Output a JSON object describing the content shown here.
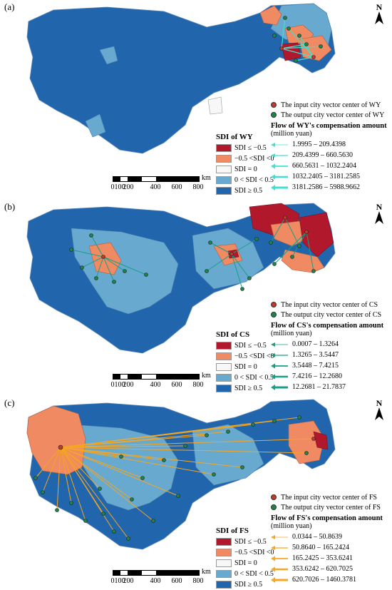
{
  "colors": {
    "le_neg05": "#b2182b",
    "neg05_0": "#ef8a62",
    "zero": "#f7f7f7",
    "zero_05": "#67a9cf",
    "ge_05": "#2166ac",
    "input_dot": "#c0392b",
    "output_dot": "#1e8449",
    "flow_wy": "#40e0d0",
    "flow_cs": "#16a085",
    "flow_fs": "#f5a623"
  },
  "scale": {
    "unit": "km",
    "ticks": [
      "0",
      "100",
      "200",
      "400",
      "600",
      "800"
    ]
  },
  "north_label": "N",
  "sdi_classes": [
    "SDI ≤ −0.5",
    "−0.5 <SDI <0",
    "SDI = 0",
    "0 < SDI < 0.5",
    "SDI ≥ 0.5"
  ],
  "panels": [
    {
      "label": "(a)",
      "sdi_title": "SDI of WY",
      "input_label": "The input city vector center of WY",
      "output_label": "The output city vector center of WY",
      "flow_title": "Flow of WY's compensation amount",
      "flow_unit": "(million yuan)",
      "flow_classes": [
        "1.9995 – 209.4398",
        "209.4399 – 660.5630",
        "660.5631 – 1032.2404",
        "1032.2405 – 3181.2585",
        "3181.2586 – 5988.9662"
      ]
    },
    {
      "label": "(b)",
      "sdi_title": "SDI of CS",
      "input_label": "The input city vector center of CS",
      "output_label": "The output city vector center of CS",
      "flow_title": "Flow of CS's compensation amount",
      "flow_unit": "(million yuan)",
      "flow_classes": [
        "0.0007 – 1.3264",
        "1.3265 – 3.5447",
        "3.5448 – 7.4215",
        "7.4216 – 12.2680",
        "12.2681 – 21.7837"
      ]
    },
    {
      "label": "(c)",
      "sdi_title": "SDI of FS",
      "input_label": "The input city vector center of FS",
      "output_label": "The output city vector center of FS",
      "flow_title": "Flow of FS's compensation amount",
      "flow_unit": "(million yuan)",
      "flow_classes": [
        "0.0344 – 50.8639",
        "50.8640 – 165.2424",
        "165.2425 – 353.6241",
        "353.6242 – 620.7025",
        "620.7026 – 1460.3781"
      ]
    }
  ]
}
